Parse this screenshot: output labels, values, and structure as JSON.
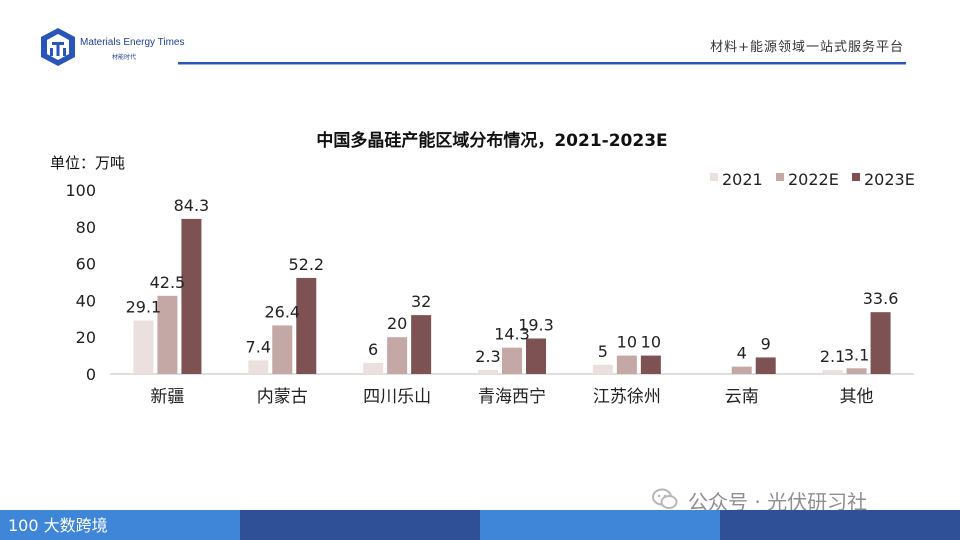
{
  "header": {
    "brand_name": "Materials Energy Times",
    "brand_sub": "材能时代",
    "tagline": "材料+能源领域一站式服务平台"
  },
  "colors": {
    "s2021": "#ece0df",
    "s2022": "#c4a8a6",
    "s2023": "#7e5252",
    "footer_light": "#3f86d8",
    "footer_dark": "#2f4f96",
    "header_blue": "#2a55b8"
  },
  "chart_data": {
    "type": "bar",
    "title": "中国多晶硅产能区域分布情况，2021-2023E",
    "unit_label": "单位：万吨",
    "categories": [
      "新疆",
      "内蒙古",
      "四川乐山",
      "青海西宁",
      "江苏徐州",
      "云南",
      "其他"
    ],
    "series": [
      {
        "name": "2021",
        "values": [
          29.1,
          7.4,
          6,
          2.3,
          5,
          null,
          2.1
        ],
        "labels": [
          "29.1",
          "7.4",
          "6",
          "2.3",
          "5",
          "",
          "2.1"
        ]
      },
      {
        "name": "2022E",
        "values": [
          42.5,
          26.4,
          20,
          14.3,
          10,
          4,
          3.1
        ],
        "labels": [
          "42.5",
          "26.4",
          "20",
          "14.3",
          "10",
          "4",
          "3.1"
        ]
      },
      {
        "name": "2023E",
        "values": [
          84.3,
          52.2,
          32,
          19.3,
          10,
          9,
          33.6
        ],
        "labels": [
          "84.3",
          "52.2",
          "32",
          "19.3",
          "10",
          "9",
          "33.6"
        ]
      }
    ],
    "ylim": [
      0,
      100
    ],
    "yticks": [
      0,
      20,
      40,
      60,
      80,
      100
    ],
    "legend_position": "top-right",
    "grid": false
  },
  "footer": {
    "logo_text": "100 大数跨境",
    "watermark": "公众号 · 光伏研习社"
  }
}
